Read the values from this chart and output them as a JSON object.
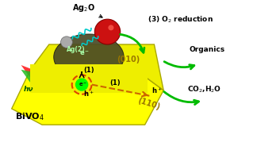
{
  "bivo4_color": "#ffff00",
  "bivo4_edge_color": "#aaa800",
  "top_face_color": "#eeee00",
  "ag_dome_color": "#4a4a25",
  "ag2o_color": "#cc1111",
  "bg_color": "#ffffff",
  "green_color": "#00bb00",
  "orange_color": "#cc6600",
  "cyan_color": "#00cccc",
  "text_bivo4": "BiVO$_4$",
  "text_ag2o": "Ag$_2$O",
  "text_010": "(010)",
  "text_110": "(110)",
  "text_o2": "(3) O$_2$ reduction",
  "text_organics": "Organics",
  "text_co2": "CO$_2$,H$_2$O",
  "text_hv": "hν",
  "xlim": [
    0,
    11
  ],
  "ylim": [
    0,
    6.5
  ]
}
